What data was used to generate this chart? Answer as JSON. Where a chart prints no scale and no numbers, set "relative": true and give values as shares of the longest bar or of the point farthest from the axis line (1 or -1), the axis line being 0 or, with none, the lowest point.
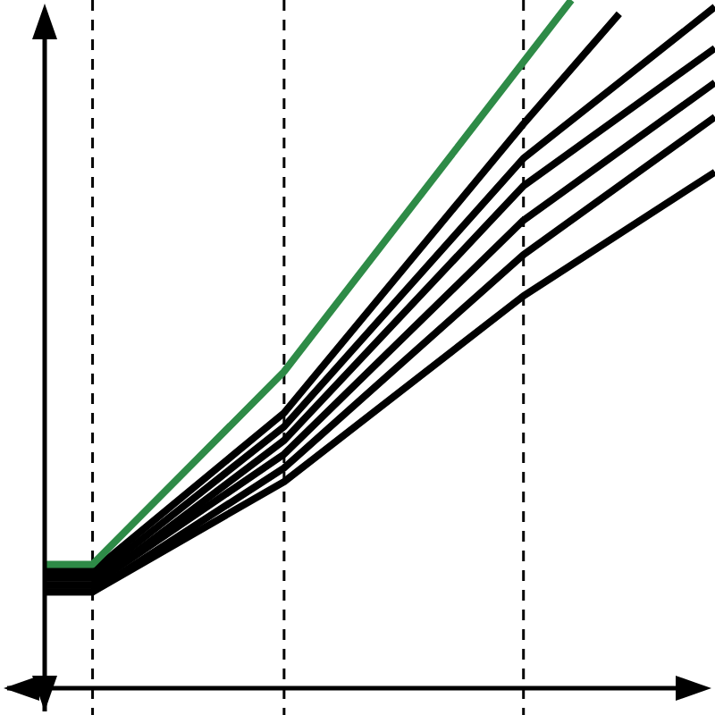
{
  "chart_data": {
    "type": "line",
    "relative": true,
    "line_style": "solid",
    "grid": "x",
    "categories": [
      null,
      null,
      null,
      null,
      null,
      null,
      null,
      null,
      null,
      null,
      null,
      null,
      null,
      null,
      null
    ],
    "series": [
      {
        "color": "#000000",
        "values": [
          0.17,
          0.17,
          null,
          null,
          null,
          0.4,
          null,
          null,
          null,
          null,
          0.82,
          null,
          0.98,
          null,
          null
        ]
      },
      {
        "color": "#000000",
        "values": [
          0.16,
          0.16,
          null,
          null,
          null,
          0.38,
          null,
          null,
          null,
          null,
          0.77,
          null,
          null,
          null,
          0.99
        ]
      },
      {
        "color": "#000000",
        "values": [
          0.15,
          0.15,
          null,
          null,
          null,
          0.36,
          null,
          null,
          null,
          null,
          0.73,
          null,
          null,
          null,
          0.93
        ]
      },
      {
        "color": "#000000",
        "values": [
          0.15,
          0.15,
          null,
          null,
          null,
          0.34,
          null,
          null,
          null,
          null,
          0.68,
          null,
          null,
          null,
          0.88
        ]
      },
      {
        "color": "#000000",
        "values": [
          0.14,
          0.14,
          null,
          null,
          null,
          0.32,
          null,
          null,
          null,
          null,
          0.63,
          null,
          null,
          null,
          0.83
        ]
      },
      {
        "color": "#000000",
        "values": [
          0.14,
          0.14,
          null,
          null,
          null,
          0.3,
          null,
          null,
          null,
          null,
          0.57,
          null,
          null,
          null,
          0.75
        ]
      },
      {
        "color": "#2e8b47",
        "values": [
          0.18,
          0.18,
          null,
          null,
          null,
          0.46,
          null,
          null,
          null,
          null,
          0.91,
          1.0,
          null,
          null,
          null
        ]
      }
    ]
  }
}
